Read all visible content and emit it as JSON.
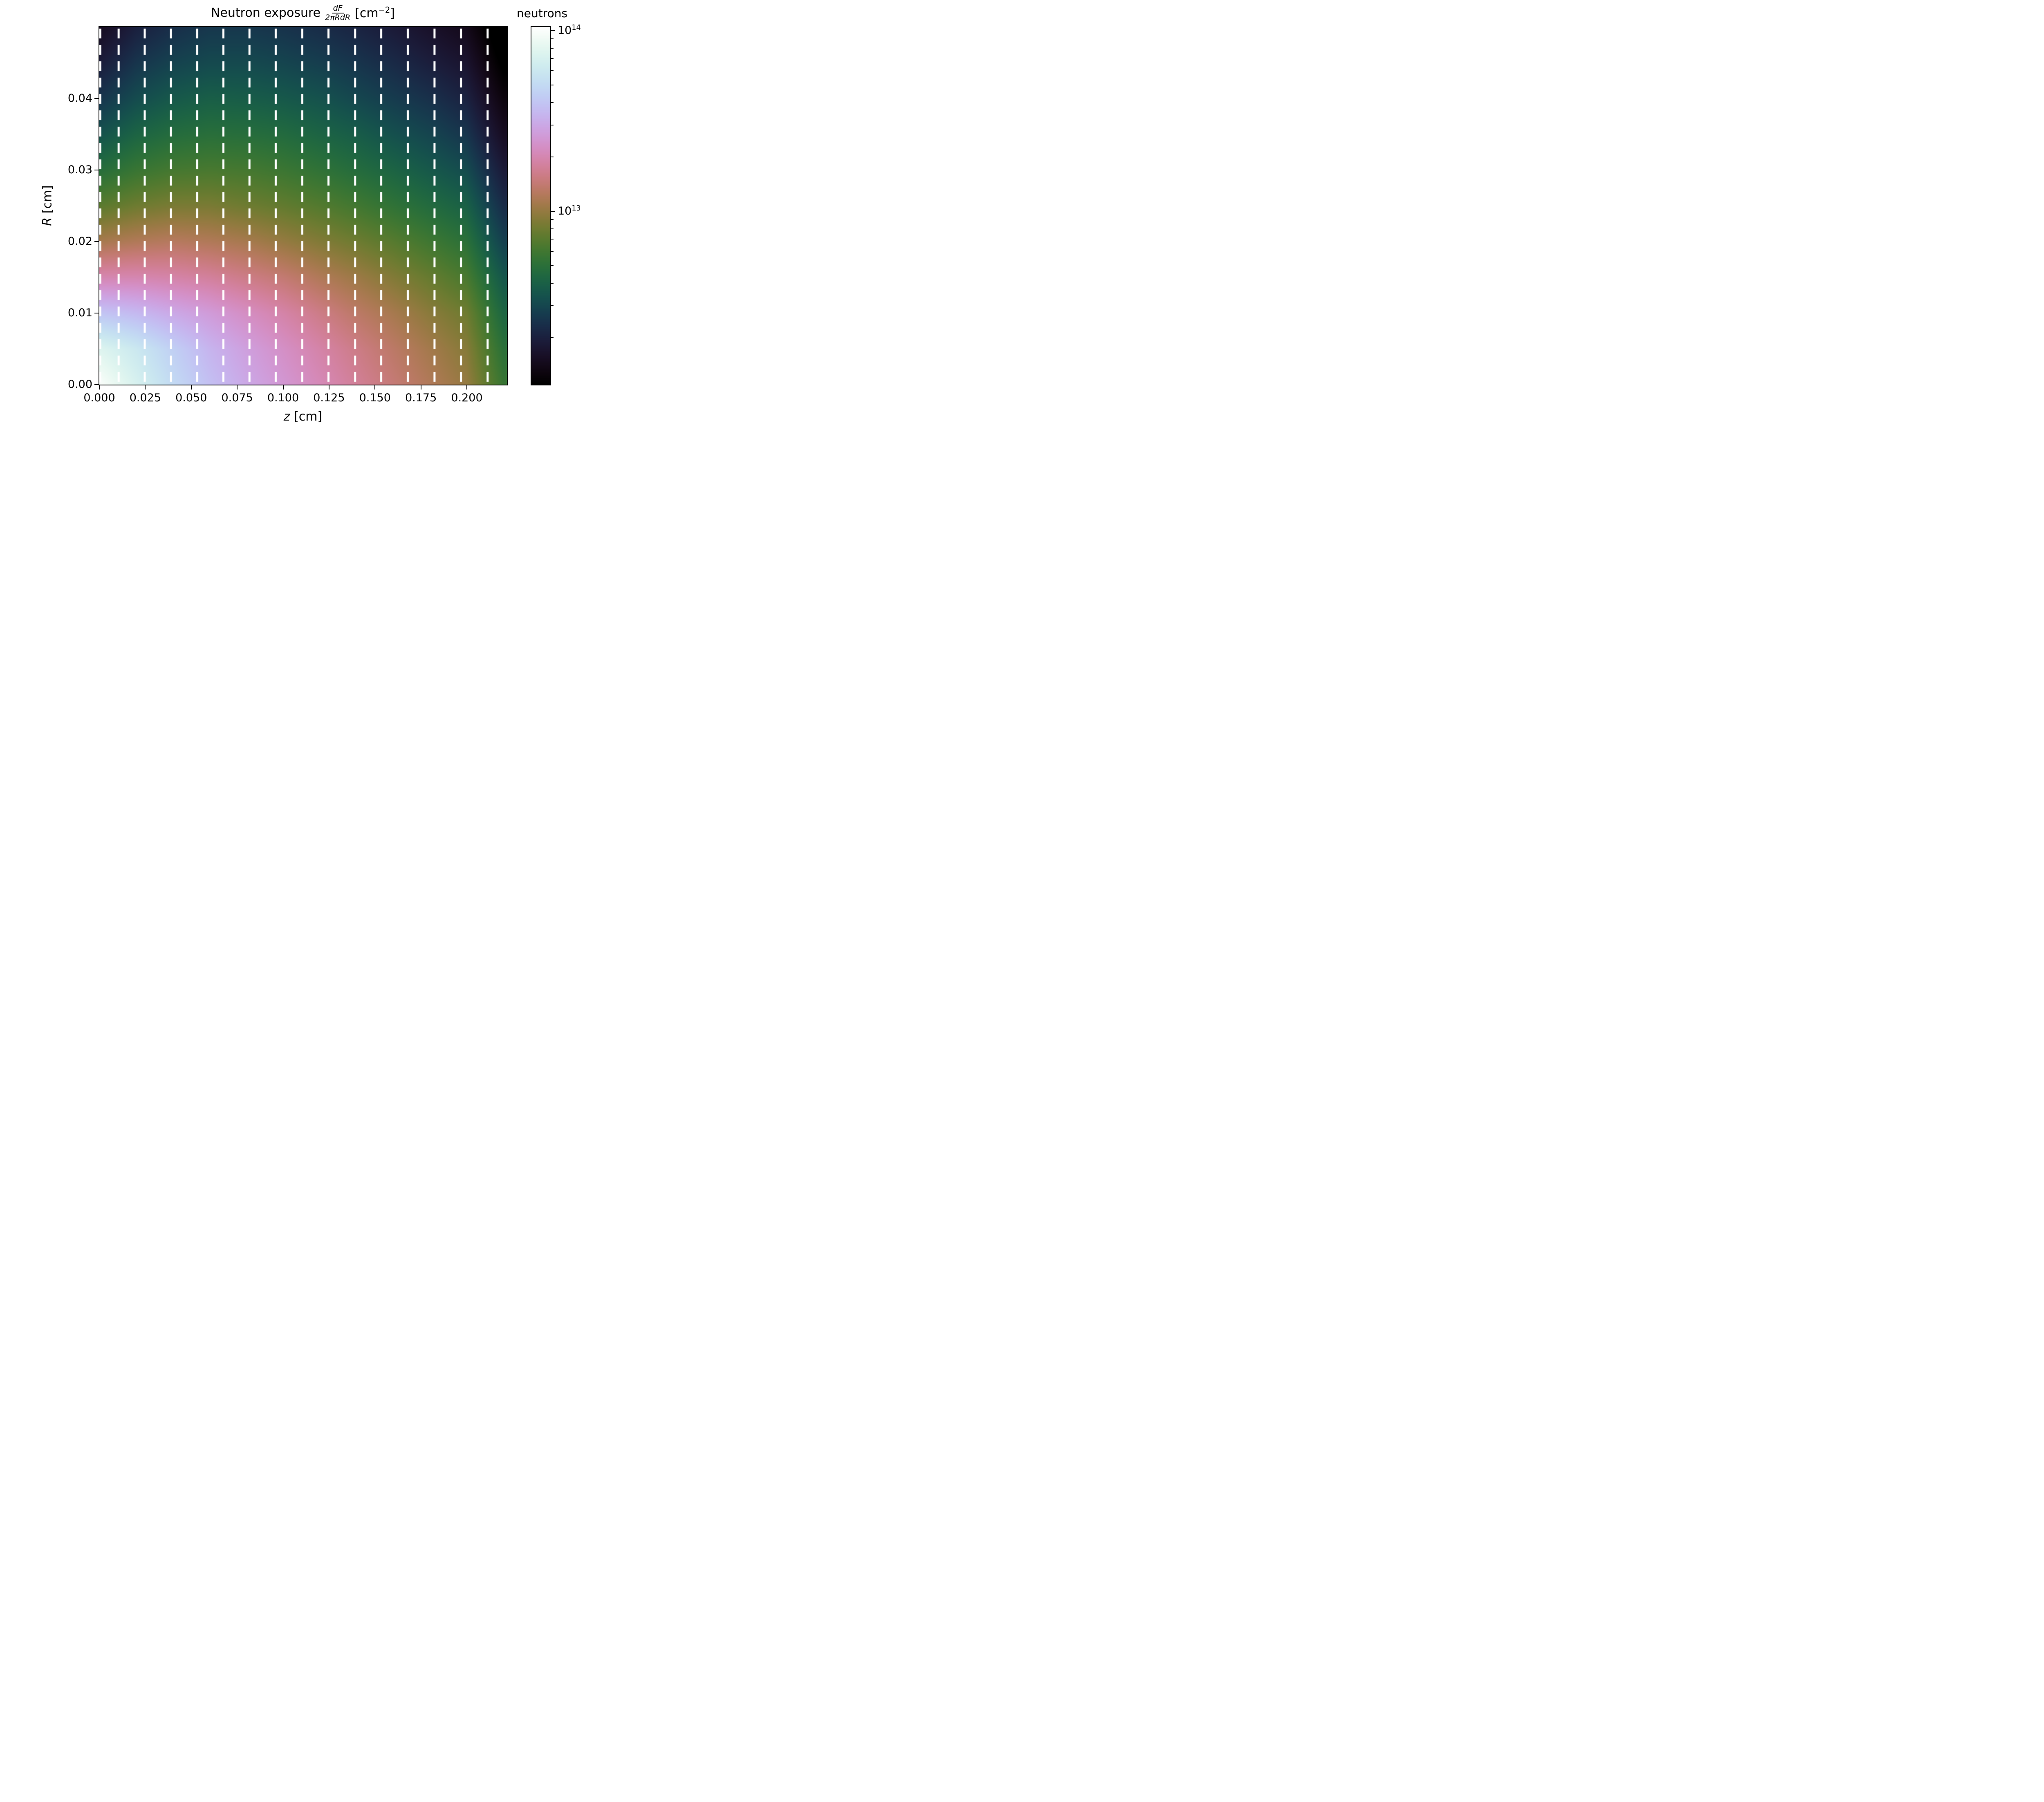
{
  "figure": {
    "title": {
      "prefix": "Neutron exposure",
      "frac_num": "dF",
      "frac_den": "2πRdR",
      "unit_pre": "[cm",
      "unit_sup": "−2",
      "unit_post": "]"
    },
    "xlabel": {
      "var": "z",
      "unit": " [cm]"
    },
    "ylabel": {
      "var": "R",
      "unit": " [cm]"
    },
    "colorbar_label": "neutrons"
  },
  "chart_data": {
    "type": "heatmap",
    "title": "Neutron exposure dF/(2πRdR) [cm⁻²]",
    "xlabel": "z [cm]",
    "ylabel": "R [cm]",
    "colorbar_label": "neutrons",
    "colormap": "cubehelix",
    "scale": "log10",
    "x_range": [
      0.0,
      0.2218
    ],
    "y_range": [
      0.0,
      0.05
    ],
    "value_log10_range": [
      12.04,
      14.02
    ],
    "x_ticks": [
      {
        "v": 0.0,
        "label": "0.000"
      },
      {
        "v": 0.025,
        "label": "0.025"
      },
      {
        "v": 0.05,
        "label": "0.050"
      },
      {
        "v": 0.075,
        "label": "0.075"
      },
      {
        "v": 0.1,
        "label": "0.100"
      },
      {
        "v": 0.125,
        "label": "0.125"
      },
      {
        "v": 0.15,
        "label": "0.150"
      },
      {
        "v": 0.175,
        "label": "0.175"
      },
      {
        "v": 0.2,
        "label": "0.200"
      }
    ],
    "y_ticks": [
      {
        "v": 0.0,
        "label": "0.00"
      },
      {
        "v": 0.01,
        "label": "0.01"
      },
      {
        "v": 0.02,
        "label": "0.02"
      },
      {
        "v": 0.03,
        "label": "0.03"
      },
      {
        "v": 0.04,
        "label": "0.04"
      }
    ],
    "colorbar_major_ticks": [
      {
        "log10": 14,
        "label_base": "10",
        "label_exp": "14"
      },
      {
        "log10": 13,
        "label_base": "10",
        "label_exp": "13"
      }
    ],
    "colorbar_minor_decades": [
      12,
      13
    ],
    "z_grid": [
      0.0,
      0.02,
      0.04,
      0.06,
      0.08,
      0.1,
      0.12,
      0.14,
      0.16,
      0.18,
      0.2,
      0.22
    ],
    "r_grid": [
      0.0,
      0.005,
      0.01,
      0.015,
      0.02,
      0.025,
      0.03,
      0.035,
      0.04,
      0.045,
      0.05
    ],
    "log10_values": [
      [
        14.0,
        13.85,
        13.7,
        13.58,
        13.48,
        13.4,
        13.32,
        13.24,
        13.16,
        13.08,
        13.0,
        12.75
      ],
      [
        13.88,
        13.78,
        13.65,
        13.53,
        13.44,
        13.36,
        13.28,
        13.2,
        13.12,
        13.04,
        12.96,
        12.7
      ],
      [
        13.6,
        13.55,
        13.48,
        13.42,
        13.35,
        13.28,
        13.2,
        13.12,
        13.05,
        12.97,
        12.9,
        12.63
      ],
      [
        13.3,
        13.3,
        13.28,
        13.25,
        13.2,
        13.15,
        13.08,
        13.02,
        12.95,
        12.88,
        12.8,
        12.55
      ],
      [
        13.05,
        13.08,
        13.1,
        13.08,
        13.05,
        13.0,
        12.95,
        12.9,
        12.84,
        12.77,
        12.7,
        12.45
      ],
      [
        12.85,
        12.9,
        12.93,
        12.93,
        12.9,
        12.87,
        12.83,
        12.78,
        12.72,
        12.66,
        12.6,
        12.36
      ],
      [
        12.68,
        12.75,
        12.79,
        12.8,
        12.79,
        12.76,
        12.72,
        12.67,
        12.62,
        12.56,
        12.5,
        12.27
      ],
      [
        12.53,
        12.62,
        12.67,
        12.69,
        12.68,
        12.66,
        12.62,
        12.58,
        12.52,
        12.47,
        12.4,
        12.18
      ],
      [
        12.4,
        12.5,
        12.56,
        12.59,
        12.58,
        12.56,
        12.53,
        12.48,
        12.43,
        12.38,
        12.31,
        12.1
      ],
      [
        12.28,
        12.4,
        12.46,
        12.49,
        12.49,
        12.47,
        12.44,
        12.4,
        12.35,
        12.29,
        12.23,
        12.02
      ],
      [
        12.17,
        12.3,
        12.37,
        12.41,
        12.41,
        12.39,
        12.36,
        12.32,
        12.27,
        12.21,
        12.15,
        11.95
      ]
    ],
    "dashed_lines_z": [
      0.0005,
      0.0105,
      0.0247,
      0.039,
      0.0532,
      0.0675,
      0.0817,
      0.096,
      0.1104,
      0.1247,
      0.1392,
      0.1534,
      0.1679,
      0.1824,
      0.1968,
      0.2113
    ],
    "grid": "off",
    "legend": "none"
  }
}
